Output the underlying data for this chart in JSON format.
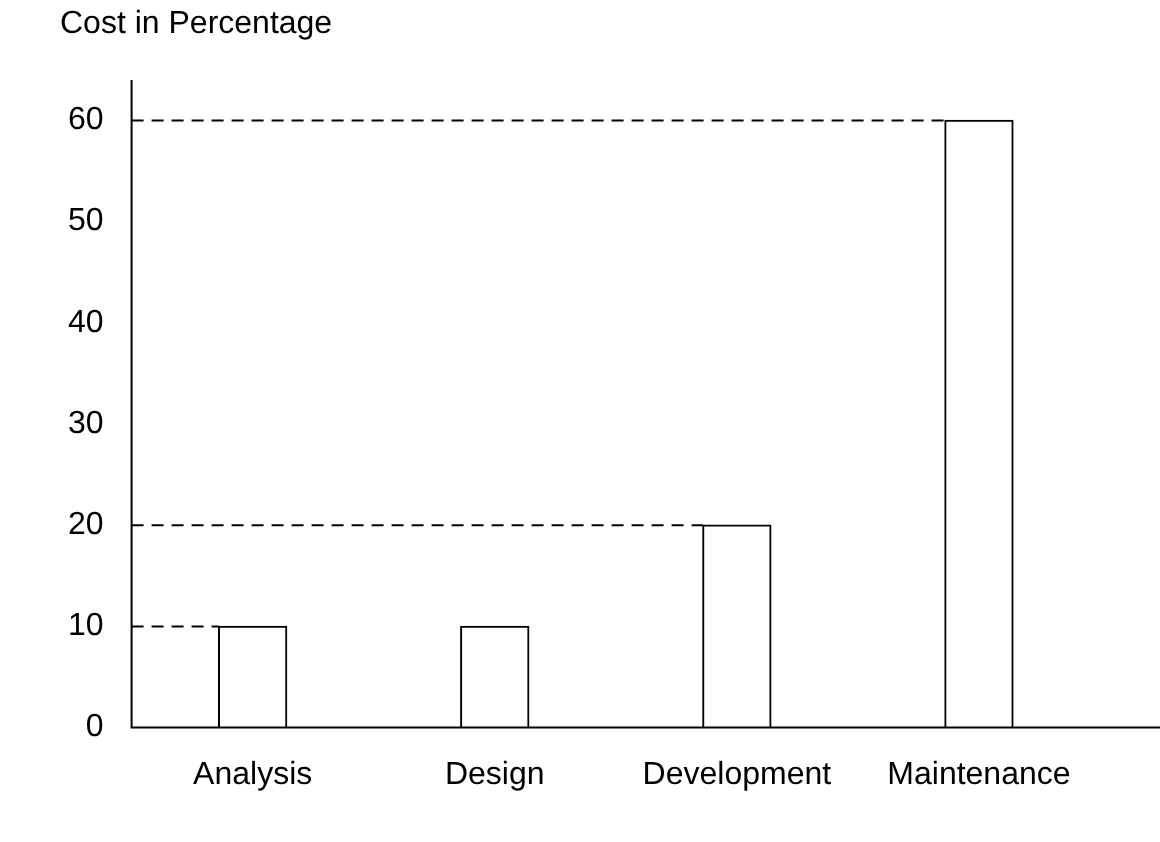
{
  "chart_data": {
    "type": "bar",
    "ylabel": "Cost in Percentage",
    "categories": [
      "Analysis",
      "Design",
      "Development",
      "Maintenance"
    ],
    "values": [
      10,
      10,
      20,
      60
    ],
    "color": "#ffffff",
    "ylim": [
      0,
      64
    ],
    "yticks": [
      0,
      10,
      20,
      30,
      40,
      50,
      60
    ],
    "grid": false,
    "ref_lines": [
      {
        "axis": "y",
        "value": 10,
        "label": null,
        "line_style": "dashed",
        "color": "#000000"
      },
      {
        "axis": "y",
        "value": 20,
        "label": null,
        "line_style": "dashed",
        "color": "#000000"
      },
      {
        "axis": "y",
        "value": 60,
        "label": null,
        "line_style": "dashed",
        "color": "#000000"
      }
    ]
  }
}
